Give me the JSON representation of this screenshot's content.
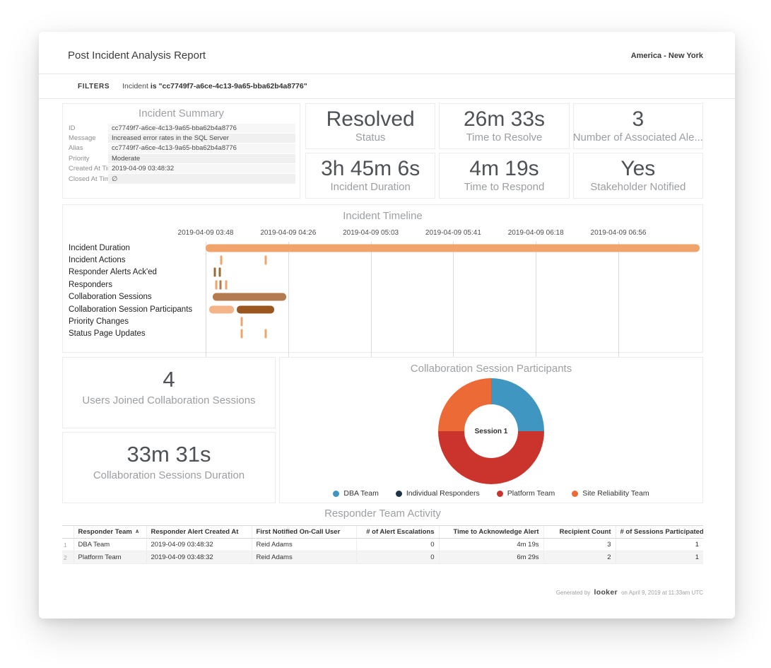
{
  "header": {
    "title": "Post Incident Analysis Report",
    "timezone": "America - New York"
  },
  "filters": {
    "label": "FILTERS",
    "field": "Incident",
    "operator": "is",
    "value": "\"cc7749f7-a6ce-4c13-9a65-bba62b4a8776\""
  },
  "incident_summary": {
    "title": "Incident Summary",
    "rows": [
      {
        "label": "ID",
        "value": "cc7749f7-a6ce-4c13-9a65-bba62b4a8776"
      },
      {
        "label": "Message",
        "value": "Increased error rates in the SQL Server"
      },
      {
        "label": "Alias",
        "value": "cc7749f7-a6ce-4c13-9a65-bba62b4a8776"
      },
      {
        "label": "Priority",
        "value": "Moderate"
      },
      {
        "label": "Created At Time",
        "value": "2019-04-09 03:48:32"
      },
      {
        "label": "Closed At Time",
        "value": "∅"
      }
    ]
  },
  "kpis": [
    {
      "value": "Resolved",
      "label": "Status"
    },
    {
      "value": "26m 33s",
      "label": "Time to Resolve"
    },
    {
      "value": "3",
      "label": "Number of Associated Ale..."
    },
    {
      "value": "3h 45m 6s",
      "label": "Incident Duration"
    },
    {
      "value": "4m 19s",
      "label": "Time to Respond"
    },
    {
      "value": "Yes",
      "label": "Stakeholder Notified"
    }
  ],
  "stats": [
    {
      "value": "4",
      "label": "Users Joined Collaboration Sessions"
    },
    {
      "value": "33m 31s",
      "label": "Collaboration Sessions Duration"
    }
  ],
  "chart_data": [
    {
      "type": "timeline",
      "title": "Incident Timeline",
      "x_ticks": [
        "2019-04-09 03:48",
        "2019-04-09 04:26",
        "2019-04-09 05:03",
        "2019-04-09 05:41",
        "2019-04-09 06:18",
        "2019-04-09 06:56"
      ],
      "tick_interval_minutes": 37.6,
      "x_range_minutes": [
        0,
        226.3
      ],
      "rows": [
        {
          "label": "Incident Duration",
          "bars": [
            {
              "start": 0,
              "end": 225.1,
              "color": "#f1a36c"
            }
          ],
          "ticks": []
        },
        {
          "label": "Incident Actions",
          "bars": [],
          "ticks": [
            {
              "t": 7,
              "color": "#f1a36c"
            },
            {
              "t": 27.5,
              "color": "#f1a36c"
            }
          ]
        },
        {
          "label": "Responder Alerts Ack'ed",
          "bars": [],
          "ticks": [
            {
              "t": 4.3,
              "color": "#9a6a33"
            },
            {
              "t": 6.5,
              "color": "#9a6a33"
            }
          ]
        },
        {
          "label": "Responders",
          "bars": [],
          "ticks": [
            {
              "t": 4.8,
              "color": "#f1a36c"
            },
            {
              "t": 6.9,
              "color": "#b57a4a"
            },
            {
              "t": 9.2,
              "color": "#f1a36c"
            }
          ]
        },
        {
          "label": "Collaboration Sessions",
          "bars": [
            {
              "start": 3.2,
              "end": 36.7,
              "color": "#b47a50"
            }
          ],
          "ticks": []
        },
        {
          "label": "Collaboration Session Participants",
          "bars": [
            {
              "start": 1.6,
              "end": 12.9,
              "color": "#f2b488"
            },
            {
              "start": 14.2,
              "end": 31.2,
              "color": "#9a561f"
            }
          ],
          "ticks": []
        },
        {
          "label": "Priority Changes",
          "bars": [],
          "ticks": [
            {
              "t": 16.5,
              "color": "#f1a36c"
            }
          ]
        },
        {
          "label": "Status Page Updates",
          "bars": [],
          "ticks": [
            {
              "t": 16.5,
              "color": "#f1a36c"
            },
            {
              "t": 27.5,
              "color": "#f1a36c"
            }
          ]
        }
      ]
    },
    {
      "type": "pie",
      "title": "Collaboration Session Participants",
      "center_label": "Session 1",
      "legend_position": "bottom",
      "slices": [
        {
          "label": "DBA Team",
          "value": 25,
          "color": "#3e96c1"
        },
        {
          "label": "Individual Responders",
          "value": 0,
          "color": "#20324a"
        },
        {
          "label": "Platform Team",
          "value": 50,
          "color": "#cb342d"
        },
        {
          "label": "Site Reliability Team",
          "value": 25,
          "color": "#eb6a35"
        }
      ]
    }
  ],
  "table": {
    "title": "Responder Team Activity",
    "columns": [
      {
        "label": "Responder Team",
        "sorted": true,
        "align": "left"
      },
      {
        "label": "Responder Alert Created At",
        "align": "left"
      },
      {
        "label": "First Notified On-Call User",
        "align": "left"
      },
      {
        "label": "# of Alert Escalations",
        "align": "right"
      },
      {
        "label": "Time to Acknowledge Alert",
        "align": "right"
      },
      {
        "label": "Recipient Count",
        "align": "right"
      },
      {
        "label": "# of Sessions Participated",
        "align": "right"
      }
    ],
    "rows": [
      [
        "DBA Team",
        "2019-04-09 03:48:32",
        "Reid Adams",
        "0",
        "4m 19s",
        "3",
        "1"
      ],
      [
        "Platform Team",
        "2019-04-09 03:48:32",
        "Reid Adams",
        "0",
        "6m 29s",
        "2",
        "1"
      ]
    ]
  },
  "footer": {
    "prefix": "Generated by",
    "logo": "looker",
    "suffix": "on April 9, 2019 at 11:33am UTC"
  }
}
